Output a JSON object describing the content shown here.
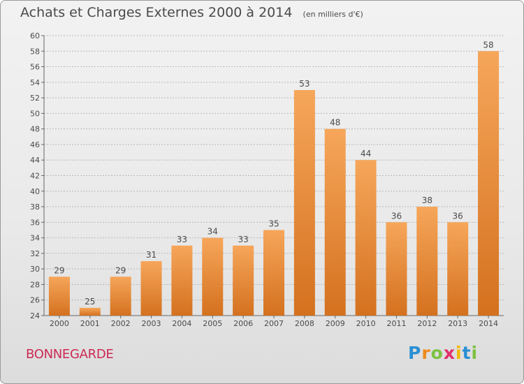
{
  "title": "Achats et Charges Externes 2000 à 2014",
  "subtitle": "(en milliers d'€)",
  "place": "BONNEGARDE",
  "logo": {
    "text": "Proxiti",
    "letters": [
      {
        "ch": "P",
        "color": "#2a8fd4"
      },
      {
        "ch": "r",
        "color": "#f08a1c"
      },
      {
        "ch": "o",
        "color": "#7cc242"
      },
      {
        "ch": "x",
        "color": "#e1306c"
      },
      {
        "ch": "i",
        "color": "#f5b800"
      },
      {
        "ch": "t",
        "color": "#2a8fd4"
      },
      {
        "ch": "i",
        "color": "#7cc242"
      }
    ]
  },
  "colors": {
    "bar_light": "#f6a65a",
    "bar_dark": "#d4711f",
    "grid": "#b8b8b8",
    "text": "#4a4a4a",
    "place": "#cc2a55"
  },
  "chart_data": {
    "type": "bar",
    "title": "Achats et Charges Externes 2000 à 2014",
    "subtitle": "(en milliers d'€)",
    "categories": [
      "2000",
      "2001",
      "2002",
      "2003",
      "2004",
      "2005",
      "2006",
      "2007",
      "2008",
      "2009",
      "2010",
      "2011",
      "2012",
      "2013",
      "2014"
    ],
    "values": [
      29,
      25,
      29,
      31,
      33,
      34,
      33,
      35,
      53,
      48,
      44,
      36,
      38,
      36,
      58
    ],
    "ylim": [
      24,
      60
    ],
    "ytick_step": 2,
    "grid": true,
    "data_labels": true
  }
}
